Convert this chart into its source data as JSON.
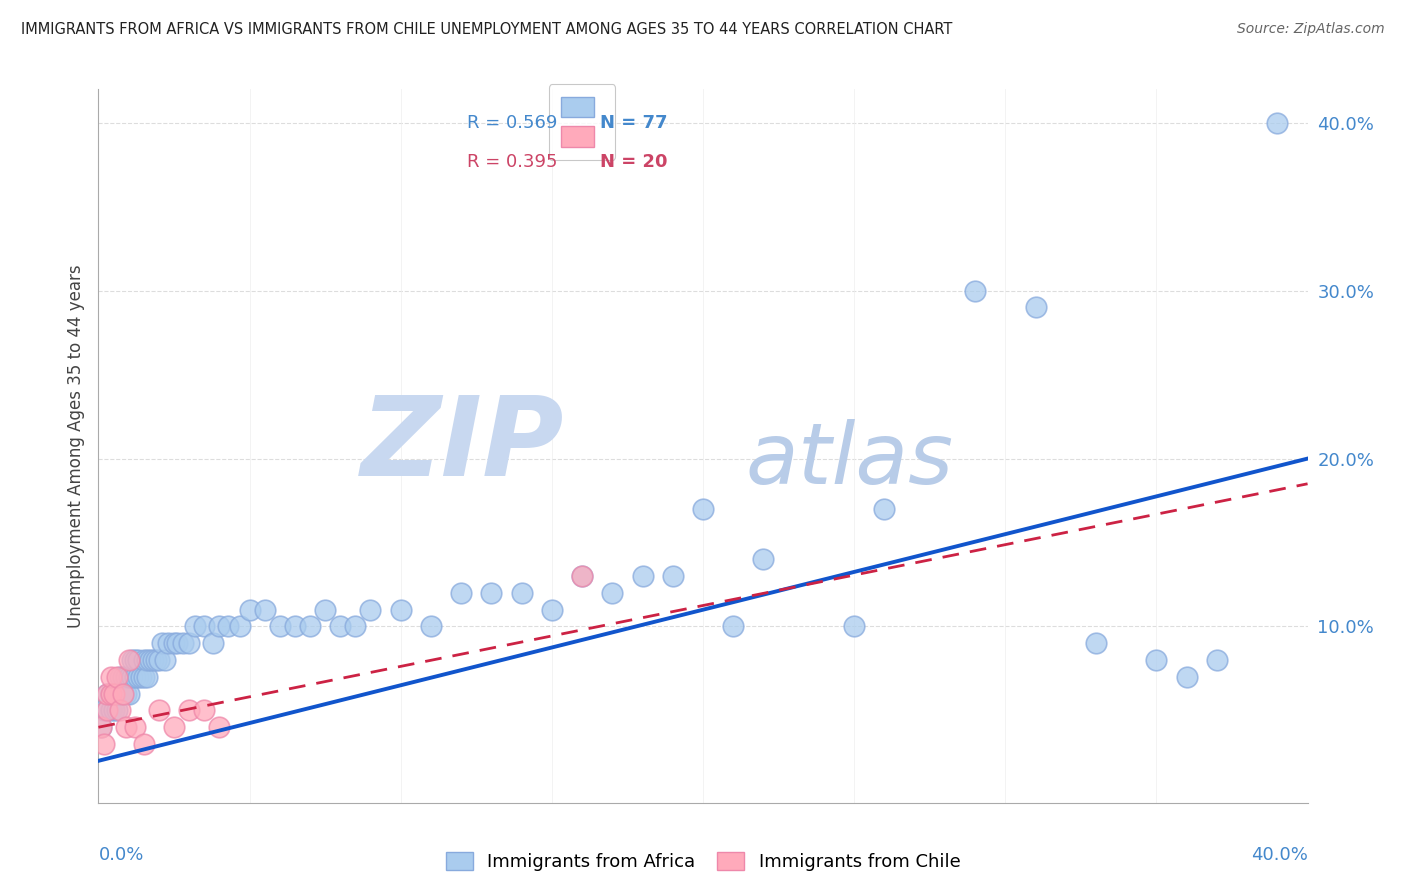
{
  "title": "IMMIGRANTS FROM AFRICA VS IMMIGRANTS FROM CHILE UNEMPLOYMENT AMONG AGES 35 TO 44 YEARS CORRELATION CHART",
  "source": "Source: ZipAtlas.com",
  "xlabel_bottom_left": "0.0%",
  "xlabel_bottom_right": "40.0%",
  "ylabel": "Unemployment Among Ages 35 to 44 years",
  "ytick_values": [
    0.0,
    0.1,
    0.2,
    0.3,
    0.4
  ],
  "xlim": [
    0,
    0.4
  ],
  "ylim": [
    -0.005,
    0.42
  ],
  "legend_africa_r": "R = 0.569",
  "legend_africa_n": "N = 77",
  "legend_chile_r": "R = 0.395",
  "legend_chile_n": "N = 20",
  "africa_color_fill": "#aaccee",
  "africa_color_edge": "#88aadd",
  "chile_color_fill": "#ffaabb",
  "chile_color_edge": "#ee88aa",
  "africa_line_color": "#1155cc",
  "chile_line_color": "#cc2244",
  "watermark_zip_color": "#c8d8f0",
  "watermark_atlas_color": "#b8cce8",
  "background_color": "#ffffff",
  "grid_color": "#dddddd",
  "africa_trend_x0": 0.0,
  "africa_trend_y0": 0.02,
  "africa_trend_x1": 0.4,
  "africa_trend_y1": 0.2,
  "chile_trend_x0": 0.0,
  "chile_trend_y0": 0.04,
  "chile_trend_x1": 0.4,
  "chile_trend_y1": 0.185,
  "africa_x": [
    0.001,
    0.002,
    0.003,
    0.003,
    0.004,
    0.004,
    0.005,
    0.005,
    0.006,
    0.006,
    0.007,
    0.007,
    0.008,
    0.008,
    0.009,
    0.009,
    0.01,
    0.01,
    0.011,
    0.011,
    0.012,
    0.012,
    0.013,
    0.013,
    0.014,
    0.015,
    0.015,
    0.016,
    0.016,
    0.017,
    0.018,
    0.019,
    0.02,
    0.021,
    0.022,
    0.023,
    0.025,
    0.026,
    0.028,
    0.03,
    0.032,
    0.035,
    0.038,
    0.04,
    0.043,
    0.047,
    0.05,
    0.055,
    0.06,
    0.065,
    0.07,
    0.075,
    0.08,
    0.085,
    0.09,
    0.1,
    0.11,
    0.12,
    0.13,
    0.14,
    0.15,
    0.16,
    0.17,
    0.18,
    0.19,
    0.2,
    0.21,
    0.22,
    0.25,
    0.26,
    0.29,
    0.31,
    0.33,
    0.35,
    0.36,
    0.37,
    0.39
  ],
  "africa_y": [
    0.04,
    0.05,
    0.05,
    0.06,
    0.05,
    0.06,
    0.05,
    0.06,
    0.05,
    0.06,
    0.06,
    0.07,
    0.06,
    0.07,
    0.06,
    0.07,
    0.06,
    0.07,
    0.07,
    0.08,
    0.07,
    0.08,
    0.07,
    0.08,
    0.07,
    0.07,
    0.08,
    0.07,
    0.08,
    0.08,
    0.08,
    0.08,
    0.08,
    0.09,
    0.08,
    0.09,
    0.09,
    0.09,
    0.09,
    0.09,
    0.1,
    0.1,
    0.09,
    0.1,
    0.1,
    0.1,
    0.11,
    0.11,
    0.1,
    0.1,
    0.1,
    0.11,
    0.1,
    0.1,
    0.11,
    0.11,
    0.1,
    0.12,
    0.12,
    0.12,
    0.11,
    0.13,
    0.12,
    0.13,
    0.13,
    0.17,
    0.1,
    0.14,
    0.1,
    0.17,
    0.3,
    0.29,
    0.09,
    0.08,
    0.07,
    0.08,
    0.4
  ],
  "chile_x": [
    0.001,
    0.002,
    0.003,
    0.003,
    0.004,
    0.004,
    0.005,
    0.006,
    0.007,
    0.008,
    0.009,
    0.01,
    0.012,
    0.015,
    0.02,
    0.025,
    0.03,
    0.035,
    0.04,
    0.16
  ],
  "chile_y": [
    0.04,
    0.03,
    0.05,
    0.06,
    0.06,
    0.07,
    0.06,
    0.07,
    0.05,
    0.06,
    0.04,
    0.08,
    0.04,
    0.03,
    0.05,
    0.04,
    0.05,
    0.05,
    0.04,
    0.13
  ]
}
